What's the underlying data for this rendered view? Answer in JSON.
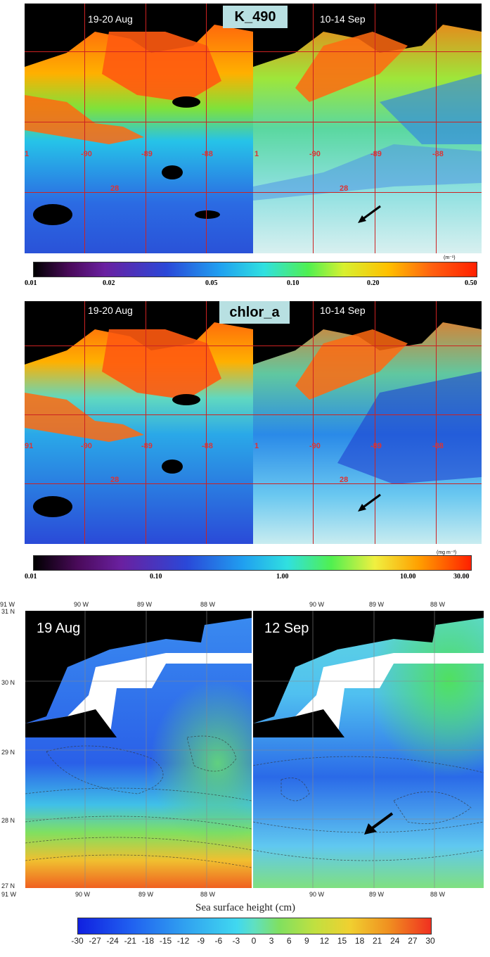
{
  "k490": {
    "title": "K_490",
    "date_left": "19-20 Aug",
    "date_right": "10-14 Sep",
    "lon_labels_left": [
      "1",
      "-90",
      "-89",
      "-88"
    ],
    "lon_labels_right": [
      "1",
      "-90",
      "-89",
      "-88"
    ],
    "lat_label_left": "28",
    "lat_label_right": "28",
    "unit": "(m⁻¹)",
    "colorbar_ticks": [
      "0.01",
      "0.02",
      "0.05",
      "0.10",
      "0.20",
      "0.50"
    ]
  },
  "chlor": {
    "title": "chlor_a",
    "date_left": "19-20 Aug",
    "date_right": "10-14 Sep",
    "lon_labels_left": [
      "91",
      "-90",
      "-89",
      "-88"
    ],
    "lon_labels_right": [
      "1",
      "-90",
      "-89",
      "-88"
    ],
    "lat_label_left": "28",
    "lat_label_right": "28",
    "unit": "(mg m⁻³)",
    "colorbar_ticks": [
      "0.01",
      "0.10",
      "1.00",
      "10.00",
      "30.00"
    ]
  },
  "ssh": {
    "date_left": "19 Aug",
    "date_right": "12 Sep",
    "top_lon_left": [
      "91 W",
      "90 W",
      "89 W",
      "88 W"
    ],
    "top_lon_right": [
      "90 W",
      "89 W",
      "88 W"
    ],
    "bottom_lon_left": [
      "91 W",
      "90 W",
      "89 W",
      "88 W"
    ],
    "bottom_lon_right": [
      "90 W",
      "89 W",
      "88 W"
    ],
    "lat_labels": [
      "31 N",
      "30 N",
      "29 N",
      "28 N",
      "27 N"
    ],
    "title": "Sea surface height (cm)",
    "colorbar_ticks": [
      "-30",
      "-27",
      "-24",
      "-21",
      "-18",
      "-15",
      "-12",
      "-9",
      "-6",
      "-3",
      "0",
      "3",
      "6",
      "9",
      "12",
      "15",
      "18",
      "21",
      "24",
      "27",
      "30"
    ]
  },
  "colors": {
    "grid": "#cc2222",
    "badge": "#b8e0e2"
  }
}
